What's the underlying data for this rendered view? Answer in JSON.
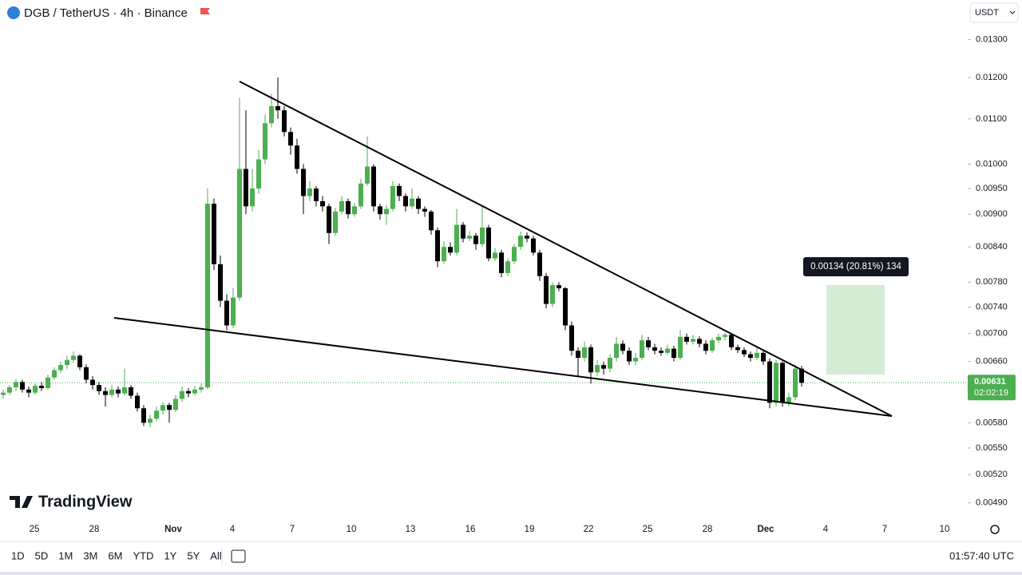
{
  "header": {
    "symbol": "DGB / TetherUS · 4h · Binance",
    "currency": "USDT"
  },
  "chart_data": {
    "type": "candlestick",
    "log_scale": true,
    "up_color": "#4caf50",
    "down_color": "#000000",
    "ylim": [
      0.004735,
      0.01413
    ],
    "yticks": [
      {
        "value": 0.013,
        "label": "0.01300"
      },
      {
        "value": 0.012,
        "label": "0.01200"
      },
      {
        "value": 0.011,
        "label": "0.01100"
      },
      {
        "value": 0.01,
        "label": "0.01000"
      },
      {
        "value": 0.0095,
        "label": "0.00950"
      },
      {
        "value": 0.009,
        "label": "0.00900"
      },
      {
        "value": 0.0084,
        "label": "0.00840"
      },
      {
        "value": 0.0078,
        "label": "0.00780"
      },
      {
        "value": 0.0074,
        "label": "0.00740"
      },
      {
        "value": 0.007,
        "label": "0.00700"
      },
      {
        "value": 0.0066,
        "label": "0.00660"
      },
      {
        "value": 0.0058,
        "label": "0.00580"
      },
      {
        "value": 0.0055,
        "label": "0.00550"
      },
      {
        "value": 0.0052,
        "label": "0.00520"
      },
      {
        "value": 0.0049,
        "label": "0.00490"
      }
    ],
    "x_labels": [
      "25",
      "28",
      "Nov",
      "4",
      "7",
      "10",
      "13",
      "16",
      "19",
      "22",
      "25",
      "28",
      "Dec",
      "4",
      "7",
      "10"
    ],
    "last_price": 0.00631,
    "countdown": "02:02:19",
    "measure_label": "0.00134 (20.81%) 134",
    "ohlc": [
      [
        0.00615,
        0.00622,
        0.0061,
        0.00618
      ],
      [
        0.00618,
        0.00628,
        0.00615,
        0.00625
      ],
      [
        0.00625,
        0.00636,
        0.0062,
        0.00632
      ],
      [
        0.00632,
        0.00635,
        0.00618,
        0.00622
      ],
      [
        0.00622,
        0.00626,
        0.00612,
        0.00618
      ],
      [
        0.00618,
        0.0063,
        0.00615,
        0.00627
      ],
      [
        0.00627,
        0.00632,
        0.0062,
        0.00624
      ],
      [
        0.00624,
        0.00642,
        0.00622,
        0.00638
      ],
      [
        0.00638,
        0.00652,
        0.00635,
        0.00648
      ],
      [
        0.00648,
        0.0066,
        0.00644,
        0.00655
      ],
      [
        0.00655,
        0.00668,
        0.0065,
        0.00662
      ],
      [
        0.00662,
        0.00674,
        0.00658,
        0.00668
      ],
      [
        0.00668,
        0.0067,
        0.00648,
        0.00652
      ],
      [
        0.00652,
        0.00656,
        0.0063,
        0.00635
      ],
      [
        0.00635,
        0.0064,
        0.00622,
        0.00628
      ],
      [
        0.00628,
        0.00632,
        0.00615,
        0.0062
      ],
      [
        0.0062,
        0.00625,
        0.006,
        0.00615
      ],
      [
        0.00615,
        0.00628,
        0.00612,
        0.00622
      ],
      [
        0.00622,
        0.00626,
        0.00612,
        0.00617
      ],
      [
        0.00617,
        0.0065,
        0.00614,
        0.00625
      ],
      [
        0.00625,
        0.00628,
        0.0061,
        0.00614
      ],
      [
        0.00614,
        0.00618,
        0.00594,
        0.00598
      ],
      [
        0.00598,
        0.00602,
        0.00576,
        0.0058
      ],
      [
        0.0058,
        0.0059,
        0.00575,
        0.00585
      ],
      [
        0.00585,
        0.006,
        0.00582,
        0.00595
      ],
      [
        0.00595,
        0.00606,
        0.0059,
        0.00602
      ],
      [
        0.00602,
        0.00605,
        0.0058,
        0.00596
      ],
      [
        0.00596,
        0.00615,
        0.00593,
        0.0061
      ],
      [
        0.0061,
        0.00626,
        0.00606,
        0.0062
      ],
      [
        0.0062,
        0.00624,
        0.00612,
        0.00617
      ],
      [
        0.00617,
        0.00627,
        0.00614,
        0.00622
      ],
      [
        0.00622,
        0.0063,
        0.00618,
        0.00625
      ],
      [
        0.00625,
        0.0095,
        0.00622,
        0.0092
      ],
      [
        0.0092,
        0.0093,
        0.008,
        0.0081
      ],
      [
        0.0081,
        0.00825,
        0.0074,
        0.0075
      ],
      [
        0.0075,
        0.0076,
        0.00705,
        0.00712
      ],
      [
        0.00712,
        0.0077,
        0.00708,
        0.00755
      ],
      [
        0.00755,
        0.0115,
        0.0075,
        0.0099
      ],
      [
        0.0099,
        0.0112,
        0.009,
        0.00915
      ],
      [
        0.00915,
        0.0099,
        0.00905,
        0.0095
      ],
      [
        0.0095,
        0.0103,
        0.0094,
        0.0101
      ],
      [
        0.0101,
        0.0111,
        0.01,
        0.0109
      ],
      [
        0.0109,
        0.0116,
        0.0108,
        0.0113
      ],
      [
        0.0113,
        0.012,
        0.011,
        0.0112
      ],
      [
        0.0112,
        0.0113,
        0.0106,
        0.0107
      ],
      [
        0.0107,
        0.0108,
        0.0102,
        0.0104
      ],
      [
        0.0104,
        0.01055,
        0.0098,
        0.0099
      ],
      [
        0.0099,
        0.01,
        0.009,
        0.00935
      ],
      [
        0.00935,
        0.00965,
        0.00925,
        0.0095
      ],
      [
        0.0095,
        0.00955,
        0.00915,
        0.00925
      ],
      [
        0.00925,
        0.00935,
        0.00905,
        0.00915
      ],
      [
        0.00915,
        0.0092,
        0.00845,
        0.00865
      ],
      [
        0.00865,
        0.00912,
        0.0086,
        0.00905
      ],
      [
        0.00905,
        0.00935,
        0.009,
        0.00925
      ],
      [
        0.00925,
        0.0093,
        0.00892,
        0.009
      ],
      [
        0.009,
        0.00922,
        0.00895,
        0.00915
      ],
      [
        0.00915,
        0.0097,
        0.0091,
        0.0096
      ],
      [
        0.0096,
        0.0106,
        0.00955,
        0.00995
      ],
      [
        0.00995,
        0.01,
        0.00905,
        0.00915
      ],
      [
        0.00915,
        0.0092,
        0.0089,
        0.009
      ],
      [
        0.009,
        0.00918,
        0.0088,
        0.0091
      ],
      [
        0.0091,
        0.00965,
        0.00905,
        0.00955
      ],
      [
        0.00955,
        0.0096,
        0.00925,
        0.00935
      ],
      [
        0.00935,
        0.0094,
        0.00905,
        0.00915
      ],
      [
        0.00915,
        0.0095,
        0.0091,
        0.0093
      ],
      [
        0.0093,
        0.00935,
        0.009,
        0.0091
      ],
      [
        0.0091,
        0.00915,
        0.00895,
        0.00905
      ],
      [
        0.00905,
        0.00908,
        0.00862,
        0.0087
      ],
      [
        0.0087,
        0.00875,
        0.00805,
        0.00815
      ],
      [
        0.00815,
        0.0085,
        0.0081,
        0.0084
      ],
      [
        0.0084,
        0.00848,
        0.00825,
        0.0083
      ],
      [
        0.0083,
        0.0091,
        0.00825,
        0.0088
      ],
      [
        0.0088,
        0.00885,
        0.00848,
        0.00855
      ],
      [
        0.00855,
        0.00868,
        0.0085,
        0.0086
      ],
      [
        0.0086,
        0.00865,
        0.00835,
        0.00845
      ],
      [
        0.00845,
        0.00915,
        0.0084,
        0.00875
      ],
      [
        0.00875,
        0.0088,
        0.00815,
        0.0082
      ],
      [
        0.0082,
        0.00838,
        0.00815,
        0.0083
      ],
      [
        0.0083,
        0.00835,
        0.00788,
        0.00795
      ],
      [
        0.00795,
        0.0082,
        0.0079,
        0.00815
      ],
      [
        0.00815,
        0.00845,
        0.0081,
        0.0084
      ],
      [
        0.0084,
        0.00868,
        0.00835,
        0.0086
      ],
      [
        0.0086,
        0.00866,
        0.00848,
        0.00855
      ],
      [
        0.00855,
        0.0086,
        0.00825,
        0.0083
      ],
      [
        0.0083,
        0.00835,
        0.00782,
        0.0079
      ],
      [
        0.0079,
        0.00795,
        0.00738,
        0.00745
      ],
      [
        0.00745,
        0.0078,
        0.0074,
        0.00775
      ],
      [
        0.00775,
        0.0078,
        0.00765,
        0.0077
      ],
      [
        0.0077,
        0.00772,
        0.00705,
        0.00712
      ],
      [
        0.00712,
        0.00718,
        0.00668,
        0.00675
      ],
      [
        0.00675,
        0.0068,
        0.0064,
        0.00665
      ],
      [
        0.00665,
        0.00688,
        0.0066,
        0.0068
      ],
      [
        0.0068,
        0.00684,
        0.0063,
        0.00645
      ],
      [
        0.00645,
        0.00662,
        0.0064,
        0.00655
      ],
      [
        0.00655,
        0.0066,
        0.00642,
        0.0065
      ],
      [
        0.0065,
        0.0067,
        0.00645,
        0.00665
      ],
      [
        0.00665,
        0.00695,
        0.0066,
        0.00685
      ],
      [
        0.00685,
        0.0069,
        0.0067,
        0.00675
      ],
      [
        0.00675,
        0.0068,
        0.00655,
        0.0066
      ],
      [
        0.0066,
        0.00672,
        0.00655,
        0.00665
      ],
      [
        0.00665,
        0.00698,
        0.00662,
        0.0069
      ],
      [
        0.0069,
        0.00695,
        0.00676,
        0.0068
      ],
      [
        0.0068,
        0.00685,
        0.0067,
        0.00675
      ],
      [
        0.00675,
        0.0068,
        0.00668,
        0.00672
      ],
      [
        0.00672,
        0.00684,
        0.00669,
        0.00678
      ],
      [
        0.00678,
        0.00682,
        0.0066,
        0.00665
      ],
      [
        0.00665,
        0.00705,
        0.00662,
        0.00695
      ],
      [
        0.00695,
        0.007,
        0.00684,
        0.00688
      ],
      [
        0.00688,
        0.00698,
        0.00684,
        0.00692
      ],
      [
        0.00692,
        0.00696,
        0.0068,
        0.00685
      ],
      [
        0.00685,
        0.0069,
        0.0067,
        0.00675
      ],
      [
        0.00675,
        0.00694,
        0.00672,
        0.0069
      ],
      [
        0.0069,
        0.007,
        0.00686,
        0.00695
      ],
      [
        0.00695,
        0.00702,
        0.0069,
        0.00698
      ],
      [
        0.00698,
        0.007,
        0.00676,
        0.0068
      ],
      [
        0.0068,
        0.00684,
        0.00672,
        0.00676
      ],
      [
        0.00676,
        0.0068,
        0.00666,
        0.0067
      ],
      [
        0.0067,
        0.00674,
        0.0066,
        0.00665
      ],
      [
        0.00665,
        0.0068,
        0.00662,
        0.00672
      ],
      [
        0.00672,
        0.00676,
        0.00655,
        0.0066
      ],
      [
        0.0066,
        0.00664,
        0.00598,
        0.00605
      ],
      [
        0.00605,
        0.00662,
        0.006,
        0.00658
      ],
      [
        0.00658,
        0.0066,
        0.006,
        0.00605
      ],
      [
        0.00605,
        0.00618,
        0.006,
        0.00612
      ],
      [
        0.00612,
        0.00656,
        0.00608,
        0.0065
      ],
      [
        0.0065,
        0.00654,
        0.00626,
        0.00631
      ]
    ]
  },
  "branding": "TradingView",
  "toolbar": {
    "ranges": [
      "1D",
      "5D",
      "1M",
      "3M",
      "6M",
      "YTD",
      "1Y",
      "5Y",
      "All"
    ],
    "clock": "01:57:40 UTC"
  }
}
